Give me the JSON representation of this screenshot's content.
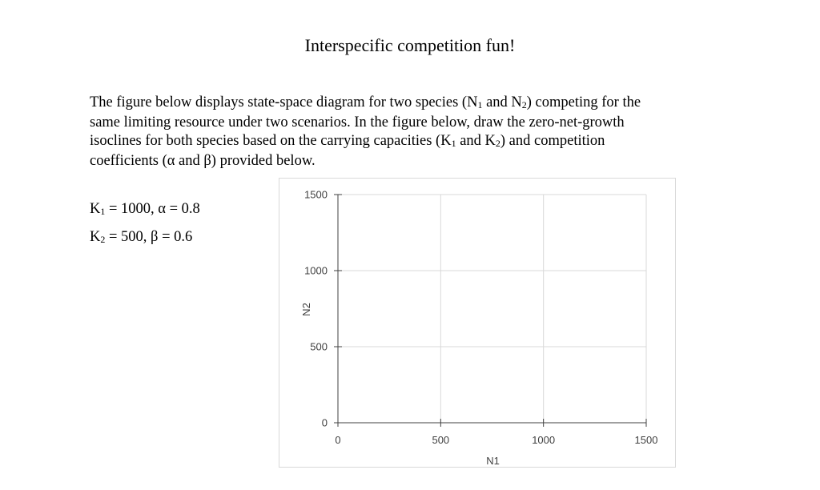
{
  "page": {
    "title": "Interspecific competition fun!",
    "paragraph_lines": [
      "The figure below displays state-space diagram for two species (N",
      "1",
      " and N",
      "2",
      ") competing for the",
      "same limiting resource under two scenarios.  In the figure below, draw the zero-net-growth",
      "isoclines for both species based on the carrying capacities (K",
      " and K",
      ") and competition",
      "coefficients (α and β) provided below."
    ],
    "param1": {
      "k": "K",
      "sub": "1",
      "rest": " = 1000, α = 0.8"
    },
    "param2": {
      "k": "K",
      "sub": "2",
      "rest": " = 500, β = 0.6"
    }
  },
  "chart_data": {
    "type": "scatter",
    "xlabel": "N1",
    "ylabel": "N2",
    "xlim": [
      0,
      1500
    ],
    "ylim": [
      0,
      1500
    ],
    "x_ticks": [
      "0",
      "500",
      "1000",
      "1500"
    ],
    "y_ticks": [
      "0",
      "500",
      "1000",
      "1500"
    ],
    "grid": true,
    "series": []
  }
}
